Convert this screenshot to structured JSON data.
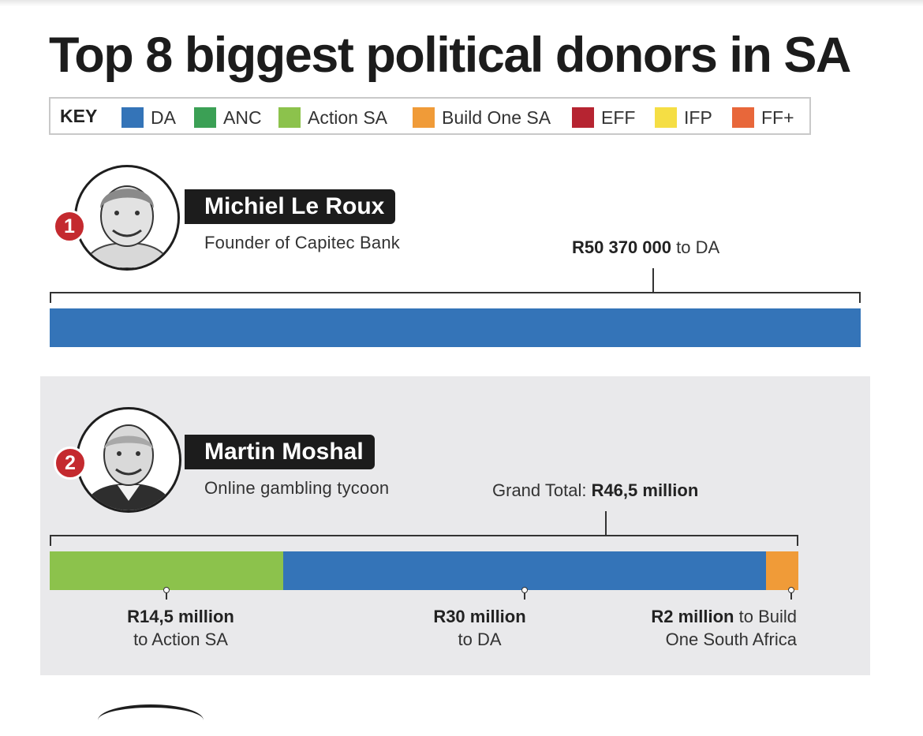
{
  "title": "Top 8 biggest political donors in SA",
  "key": {
    "label": "KEY",
    "items": [
      {
        "label": "DA",
        "color": "#3474b8"
      },
      {
        "label": "ANC",
        "color": "#3ba055"
      },
      {
        "label": "Action SA",
        "color": "#8cc24c"
      },
      {
        "label": "Build One SA",
        "color": "#f09b38"
      },
      {
        "label": "EFF",
        "color": "#b62431"
      },
      {
        "label": "IFP",
        "color": "#f5de44"
      },
      {
        "label": "FF+",
        "color": "#e8673a"
      }
    ]
  },
  "chart_data": {
    "type": "bar",
    "title": "Top 8 biggest political donors in SA",
    "units": "Rand",
    "scale_max": 50370000,
    "donors": [
      {
        "rank": "1",
        "name": "Michiel Le Roux",
        "description": "Founder of Capitec Bank",
        "total_value": 50370000,
        "total_label": {
          "prefix": "",
          "amount": "R50 370 000",
          "suffix": " to DA"
        },
        "segments": [
          {
            "party": "DA",
            "value": 50370000,
            "color": "#3474b8"
          }
        ]
      },
      {
        "rank": "2",
        "name": "Martin Moshal",
        "description": "Online gambling tycoon",
        "total_value": 46500000,
        "total_label": {
          "prefix": "Grand Total: ",
          "amount": "R46,5 million",
          "suffix": ""
        },
        "segments": [
          {
            "party": "Action SA",
            "value": 14500000,
            "color": "#8cc24c",
            "amount_label": "R14,5 million",
            "line2": "to Action SA",
            "inline_suffix": ""
          },
          {
            "party": "DA",
            "value": 30000000,
            "color": "#3474b8",
            "amount_label": "R30 million",
            "line2": "to DA",
            "inline_suffix": ""
          },
          {
            "party": "Build One SA",
            "value": 2000000,
            "color": "#f09b38",
            "amount_label": "R2 million",
            "line2": "One South Africa",
            "inline_suffix": " to Build"
          }
        ]
      }
    ]
  }
}
